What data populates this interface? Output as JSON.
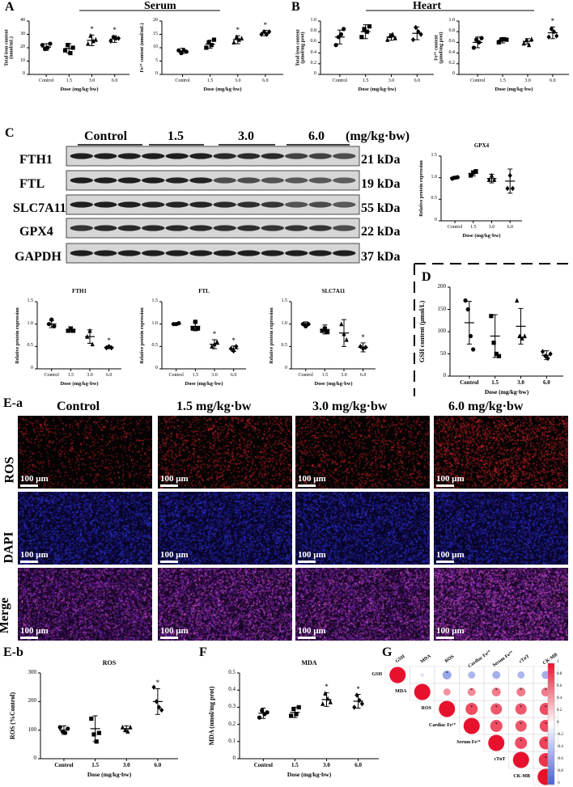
{
  "panel_labels": {
    "A": "A",
    "B": "B",
    "C": "C",
    "D": "D",
    "Ea": "E-a",
    "Eb": "E-b",
    "F": "F",
    "G": "G"
  },
  "group_titles": {
    "serum": "Serum",
    "heart": "Heart"
  },
  "western_blot": {
    "groups": [
      "Control",
      "1.5",
      "3.0",
      "6.0"
    ],
    "unit": "(mg/kg·bw)",
    "proteins": [
      {
        "name": "FTH1",
        "kda": "21 kDa"
      },
      {
        "name": "FTL",
        "kda": "19 kDa"
      },
      {
        "name": "SLC7A11",
        "kda": "55 kDa"
      },
      {
        "name": "GPX4",
        "kda": "22 kDa"
      },
      {
        "name": "GAPDH",
        "kda": "37 kDa"
      }
    ]
  },
  "microscopy": {
    "columns": [
      "Control",
      "1.5 mg/kg·bw",
      "3.0 mg/kg·bw",
      "6.0 mg/kg·bw"
    ],
    "rows": [
      "ROS",
      "DAPI",
      "Merge"
    ],
    "scale": "100 μm"
  },
  "chart_data": [
    {
      "id": "A1",
      "type": "scatter",
      "title": "",
      "xlabel": "",
      "ylabel": "Total iron content\n(nmol/mL)",
      "categories": [
        "Control",
        "1.5",
        "3.0",
        "6.0"
      ],
      "ylim": [
        0,
        40
      ],
      "yticks": [
        0,
        10,
        20,
        30,
        40
      ],
      "means": [
        20.5,
        19.5,
        25.5,
        26.5
      ],
      "sd": [
        2.5,
        3.5,
        4,
        2.5
      ],
      "points": [
        [
          22,
          19,
          20,
          23
        ],
        [
          18,
          22,
          16,
          20
        ],
        [
          23,
          29,
          25,
          26
        ],
        [
          25,
          28,
          27,
          27
        ]
      ],
      "sig": [
        "",
        "",
        "*",
        "*"
      ]
    },
    {
      "id": "A2",
      "type": "scatter",
      "title": "",
      "xlabel": "",
      "ylabel": "Fe²⁺ content (nmol/mL)",
      "categories": [
        "Control",
        "1.5",
        "3.0",
        "6.0"
      ],
      "ylim": [
        0,
        20
      ],
      "yticks": [
        0,
        5,
        10,
        15,
        20
      ],
      "means": [
        8.8,
        11.3,
        13,
        15.5
      ],
      "sd": [
        1,
        1.5,
        1.5,
        1
      ],
      "points": [
        [
          9,
          8,
          9,
          8.5
        ],
        [
          10,
          12,
          11,
          13
        ],
        [
          12,
          14,
          13,
          13.5
        ],
        [
          15,
          16,
          15,
          16
        ]
      ],
      "sig": [
        "",
        "",
        "*",
        "*"
      ]
    },
    {
      "id": "B1",
      "type": "scatter",
      "title": "",
      "xlabel": "",
      "ylabel": "Total iron content\n(μmol/mg prot)",
      "categories": [
        "Control",
        "1.5",
        "3.0",
        "6.0"
      ],
      "ylim": [
        0,
        1.0
      ],
      "yticks": [
        0,
        0.2,
        0.4,
        0.6,
        0.8,
        1.0
      ],
      "means": [
        0.7,
        0.8,
        0.7,
        0.77
      ],
      "sd": [
        0.13,
        0.13,
        0.06,
        0.12
      ],
      "points": [
        [
          0.55,
          0.7,
          0.75,
          0.85
        ],
        [
          0.7,
          0.85,
          0.8,
          0.9
        ],
        [
          0.65,
          0.72,
          0.75,
          0.68
        ],
        [
          0.65,
          0.88,
          0.8,
          0.75
        ]
      ],
      "sig": [
        "",
        "",
        "",
        ""
      ]
    },
    {
      "id": "B2",
      "type": "scatter",
      "title": "",
      "xlabel": "",
      "ylabel": "Fe²⁺ content\n(μmol/mg prot)",
      "categories": [
        "Control",
        "1.5",
        "3.0",
        "6.0"
      ],
      "ylim": [
        0,
        1.0
      ],
      "yticks": [
        0,
        0.2,
        0.4,
        0.6,
        0.8,
        1.0
      ],
      "means": [
        0.6,
        0.64,
        0.62,
        0.78
      ],
      "sd": [
        0.1,
        0.05,
        0.05,
        0.11
      ],
      "points": [
        [
          0.5,
          0.65,
          0.6,
          0.68
        ],
        [
          0.6,
          0.65,
          0.66,
          0.65
        ],
        [
          0.58,
          0.64,
          0.55,
          0.66
        ],
        [
          0.7,
          0.85,
          0.8,
          0.72
        ]
      ],
      "sig": [
        "",
        "",
        "",
        "*"
      ]
    },
    {
      "id": "GPX4",
      "type": "scatter",
      "title": "GPX4",
      "xlabel": "",
      "ylabel": "Relative protein expression",
      "categories": [
        "Control",
        "1.5",
        "3.0",
        "6.0"
      ],
      "ylim": [
        0,
        1.5
      ],
      "yticks": [
        0,
        0.5,
        1.0,
        1.5
      ],
      "means": [
        1.0,
        1.1,
        0.98,
        0.92
      ],
      "sd": [
        0.03,
        0.06,
        0.1,
        0.28
      ],
      "points": [
        [
          0.98,
          1.0,
          1.01
        ],
        [
          1.05,
          1.12,
          1.15
        ],
        [
          0.95,
          1.05,
          0.95
        ],
        [
          0.75,
          1.05,
          0.75
        ]
      ],
      "sig": [
        "",
        "",
        "",
        ""
      ]
    },
    {
      "id": "FTH1",
      "type": "scatter",
      "title": "FTH1",
      "xlabel": "",
      "ylabel": "Relative protein expression",
      "categories": [
        "Control",
        "1.5",
        "3.0",
        "6.0"
      ],
      "ylim": [
        0,
        1.5
      ],
      "yticks": [
        0,
        0.5,
        1.0,
        1.5
      ],
      "means": [
        1.0,
        0.88,
        0.72,
        0.48
      ],
      "sd": [
        0.08,
        0.06,
        0.15,
        0.03
      ],
      "points": [
        [
          1.0,
          1.1,
          0.95
        ],
        [
          0.85,
          0.9,
          0.85
        ],
        [
          0.72,
          0.85,
          0.55
        ],
        [
          0.47,
          0.5,
          0.47
        ]
      ],
      "sig": [
        "",
        "",
        "",
        "*"
      ]
    },
    {
      "id": "FTL",
      "type": "scatter",
      "title": "FTL",
      "xlabel": "",
      "ylabel": "Relative protein expression",
      "categories": [
        "Control",
        "1.5",
        "3.0",
        "6.0"
      ],
      "ylim": [
        0,
        1.5
      ],
      "yticks": [
        0,
        0.5,
        1.0,
        1.5
      ],
      "means": [
        1.0,
        0.95,
        0.55,
        0.45
      ],
      "sd": [
        0.02,
        0.1,
        0.1,
        0.06
      ],
      "points": [
        [
          1.0,
          1.0,
          1.02
        ],
        [
          0.9,
          1.05,
          0.9
        ],
        [
          0.5,
          0.55,
          0.6
        ],
        [
          0.45,
          0.4,
          0.5
        ]
      ],
      "sig": [
        "",
        "",
        "*",
        "*"
      ]
    },
    {
      "id": "SLC7A11",
      "type": "scatter",
      "title": "SLC7A11",
      "xlabel": "",
      "ylabel": "Relative protein expression",
      "categories": [
        "Control",
        "1.5",
        "3.0",
        "6.0"
      ],
      "ylim": [
        0,
        1.5
      ],
      "yticks": [
        0,
        0.5,
        1.0,
        1.5
      ],
      "means": [
        1.0,
        0.88,
        0.8,
        0.48
      ],
      "sd": [
        0.05,
        0.1,
        0.3,
        0.1
      ],
      "points": [
        [
          1.0,
          0.95,
          1.0
        ],
        [
          0.85,
          0.9,
          0.82
        ],
        [
          1.0,
          0.78,
          0.65
        ],
        [
          0.5,
          0.45,
          0.48
        ]
      ],
      "sig": [
        "",
        "",
        "",
        "*"
      ]
    },
    {
      "id": "D",
      "type": "scatter",
      "title": "",
      "xlabel": "",
      "ylabel": "GSH content (μmol/L)",
      "categories": [
        "Control",
        "1.5",
        "3.0",
        "6.0"
      ],
      "ylim": [
        0,
        200
      ],
      "yticks": [
        0,
        50,
        100,
        150,
        200
      ],
      "means": [
        120,
        90,
        112,
        47
      ],
      "sd": [
        48,
        48,
        40,
        10
      ],
      "points": [
        [
          170,
          150,
          90,
          60
        ],
        [
          135,
          75,
          50,
          45
        ],
        [
          170,
          90,
          85,
          90
        ],
        [
          55,
          45,
          40,
          50
        ]
      ],
      "sig": [
        "",
        "",
        "",
        ""
      ]
    },
    {
      "id": "Eb",
      "type": "scatter",
      "title": "ROS",
      "xlabel": "",
      "ylabel": "ROS (%Control)",
      "categories": [
        "Control",
        "1.5",
        "3.0",
        "6.0"
      ],
      "ylim": [
        0,
        300
      ],
      "yticks": [
        0,
        100,
        200,
        300
      ],
      "means": [
        100,
        105,
        105,
        200
      ],
      "sd": [
        15,
        45,
        10,
        45
      ],
      "points": [
        [
          110,
          95,
          90,
          105
        ],
        [
          140,
          85,
          60,
          90
        ],
        [
          110,
          100,
          95,
          110
        ],
        [
          250,
          200,
          180,
          170
        ]
      ],
      "sig": [
        "",
        "",
        "",
        "*"
      ]
    },
    {
      "id": "F",
      "type": "scatter",
      "title": "MDA",
      "xlabel": "",
      "ylabel": "MDA (nmol/mg prot)",
      "categories": [
        "Control",
        "1.5",
        "3.0",
        "6.0"
      ],
      "ylim": [
        0,
        0.5
      ],
      "yticks": [
        0,
        0.1,
        0.2,
        0.3,
        0.4,
        0.5
      ],
      "means": [
        0.265,
        0.27,
        0.345,
        0.335
      ],
      "sd": [
        0.03,
        0.03,
        0.04,
        0.04
      ],
      "points": [
        [
          0.24,
          0.28,
          0.26,
          0.27
        ],
        [
          0.25,
          0.29,
          0.26,
          0.3
        ],
        [
          0.32,
          0.38,
          0.35,
          0.33
        ],
        [
          0.3,
          0.37,
          0.34,
          0.32
        ]
      ],
      "sig": [
        "",
        "",
        "*",
        "*"
      ]
    },
    {
      "id": "G",
      "type": "heatmap",
      "title": "",
      "variables": [
        "GSH",
        "MDA",
        "ROS",
        "Cardiac Fe²⁺",
        "Serum Fe²⁺",
        "cTnT",
        "CK-MB"
      ],
      "matrix": [
        [
          1,
          -0.2,
          -0.55,
          -0.45,
          -0.5,
          -0.45,
          -0.5
        ],
        [
          null,
          1,
          0.45,
          0.5,
          0.55,
          0.55,
          0.55
        ],
        [
          null,
          null,
          1,
          0.75,
          0.7,
          0.7,
          0.75
        ],
        [
          null,
          null,
          null,
          1,
          0.75,
          0.7,
          0.75
        ],
        [
          null,
          null,
          null,
          null,
          1,
          0.75,
          0.8
        ],
        [
          null,
          null,
          null,
          null,
          null,
          1,
          0.85
        ],
        [
          null,
          null,
          null,
          null,
          null,
          null,
          1
        ]
      ],
      "sig_star": [
        [
          false,
          false,
          true,
          false,
          false,
          false,
          false
        ],
        [
          false,
          false,
          false,
          true,
          true,
          true,
          true
        ],
        [
          false,
          false,
          false,
          true,
          true,
          true,
          true
        ],
        [
          false,
          false,
          false,
          false,
          true,
          true,
          true
        ],
        [
          false,
          false,
          false,
          false,
          false,
          true,
          true
        ],
        [
          false,
          false,
          false,
          false,
          false,
          false,
          true
        ],
        [
          false,
          false,
          false,
          false,
          false,
          false,
          false
        ]
      ],
      "colorbar_ticks": [
        "1",
        "0.8",
        "0.6",
        "0.4",
        "0.2",
        "0",
        "-0.2",
        "-0.4",
        "-0.6",
        "-0.8",
        "-1"
      ]
    }
  ],
  "axis_common": {
    "xlabel": "Dose (mg/kg·bw)"
  },
  "colors": {
    "red": "#e8112d",
    "blue": "#4a5fd6",
    "axis": "#000000"
  }
}
